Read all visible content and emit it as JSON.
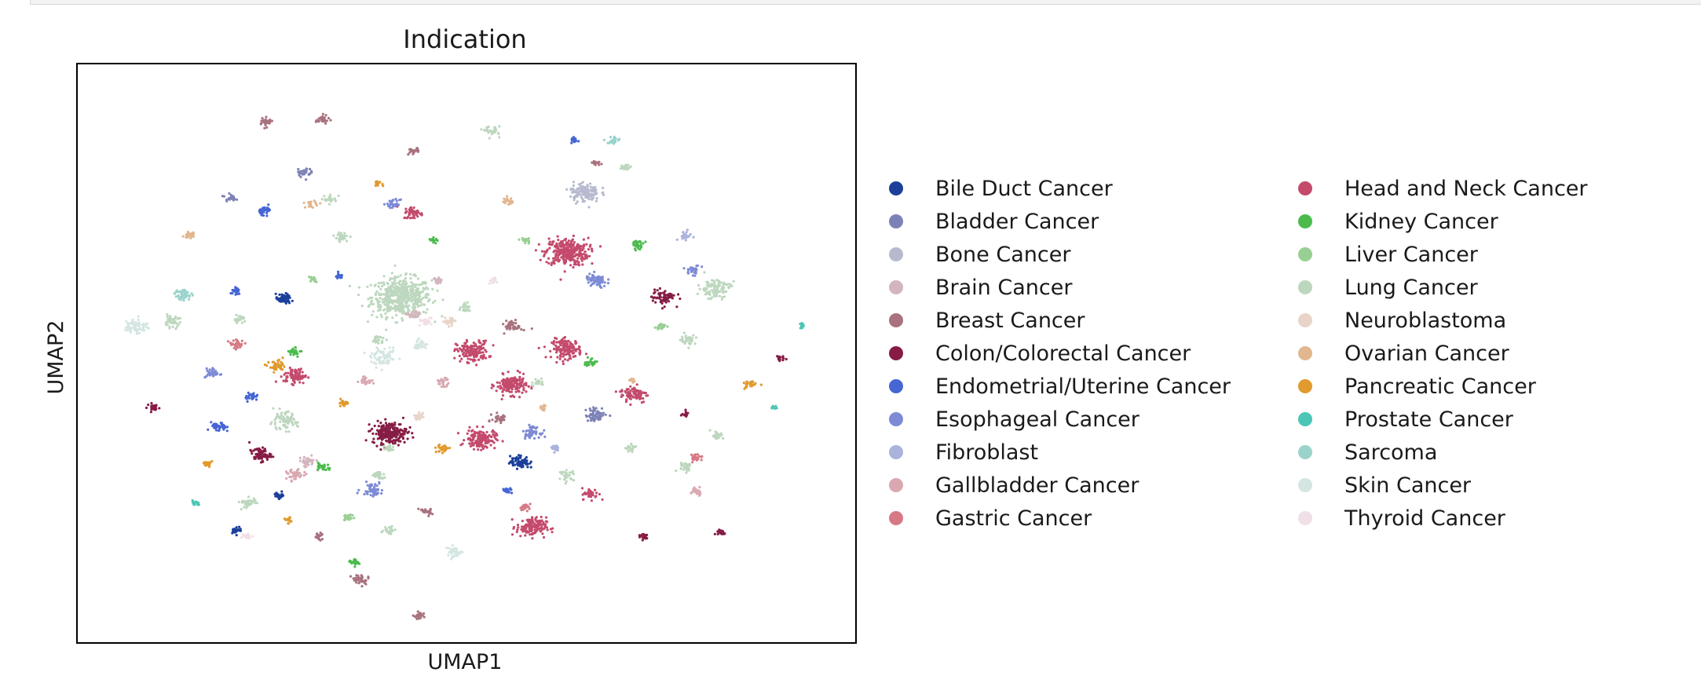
{
  "chart_data": {
    "type": "scatter",
    "title": "Indication",
    "xlabel": "UMAP1",
    "ylabel": "UMAP2",
    "grid": false,
    "ticks": false,
    "legend_placement": "right, two columns",
    "series": [
      {
        "name": "Bile Duct Cancer",
        "color": "#1b3f9b"
      },
      {
        "name": "Bladder Cancer",
        "color": "#7d82b6"
      },
      {
        "name": "Bone Cancer",
        "color": "#b7bacf"
      },
      {
        "name": "Brain Cancer",
        "color": "#d3b6bd"
      },
      {
        "name": "Breast Cancer",
        "color": "#a8727e"
      },
      {
        "name": "Colon/Colorectal Cancer",
        "color": "#861c45"
      },
      {
        "name": "Endometrial/Uterine Cancer",
        "color": "#4566d3"
      },
      {
        "name": "Esophageal Cancer",
        "color": "#7d8bd6"
      },
      {
        "name": "Fibroblast",
        "color": "#aab3db"
      },
      {
        "name": "Gallbladder Cancer",
        "color": "#d9a8b1"
      },
      {
        "name": "Gastric Cancer",
        "color": "#d67985"
      },
      {
        "name": "Head and Neck Cancer",
        "color": "#c44a6c"
      },
      {
        "name": "Kidney Cancer",
        "color": "#4cbb4c"
      },
      {
        "name": "Liver Cancer",
        "color": "#98cf92"
      },
      {
        "name": "Lung Cancer",
        "color": "#bdd7be"
      },
      {
        "name": "Neuroblastoma",
        "color": "#e8d4c9"
      },
      {
        "name": "Ovarian Cancer",
        "color": "#e2b68f"
      },
      {
        "name": "Pancreatic Cancer",
        "color": "#e09a2d"
      },
      {
        "name": "Prostate Cancer",
        "color": "#4cc6b5"
      },
      {
        "name": "Sarcoma",
        "color": "#9ad3cc"
      },
      {
        "name": "Skin Cancer",
        "color": "#d4e5e2"
      },
      {
        "name": "Thyroid Cancer",
        "color": "#f0dfe6"
      }
    ],
    "clusters": [
      {
        "s": 14,
        "x": -0.05,
        "y": 0.62,
        "r": 0.28,
        "n": 520
      },
      {
        "s": 11,
        "x": 1.35,
        "y": 1.12,
        "r": 0.2,
        "n": 300
      },
      {
        "s": 11,
        "x": 0.55,
        "y": 0.02,
        "r": 0.15,
        "n": 160
      },
      {
        "s": 11,
        "x": 1.35,
        "y": 0.05,
        "r": 0.14,
        "n": 150
      },
      {
        "s": 11,
        "x": 0.88,
        "y": -0.35,
        "r": 0.14,
        "n": 170
      },
      {
        "s": 11,
        "x": 0.62,
        "y": -0.95,
        "r": 0.14,
        "n": 150
      },
      {
        "s": 11,
        "x": 1.05,
        "y": -1.92,
        "r": 0.14,
        "n": 140
      },
      {
        "s": 11,
        "x": -0.95,
        "y": -0.25,
        "r": 0.11,
        "n": 80
      },
      {
        "s": 11,
        "x": 1.92,
        "y": -0.45,
        "r": 0.13,
        "n": 80
      },
      {
        "s": 11,
        "x": 1.55,
        "y": -1.55,
        "r": 0.08,
        "n": 40
      },
      {
        "s": 11,
        "x": 0.05,
        "y": 1.55,
        "r": 0.09,
        "n": 50
      },
      {
        "s": 5,
        "x": -0.15,
        "y": -0.88,
        "r": 0.16,
        "n": 210
      },
      {
        "s": 5,
        "x": -1.25,
        "y": -1.12,
        "r": 0.1,
        "n": 70
      },
      {
        "s": 5,
        "x": 2.17,
        "y": 0.62,
        "r": 0.11,
        "n": 70
      },
      {
        "s": 5,
        "x": 3.15,
        "y": -0.05,
        "r": 0.04,
        "n": 15
      },
      {
        "s": 5,
        "x": 2.65,
        "y": -1.98,
        "r": 0.05,
        "n": 20
      },
      {
        "s": 5,
        "x": 2.0,
        "y": -2.02,
        "r": 0.05,
        "n": 20
      },
      {
        "s": 5,
        "x": -2.15,
        "y": -0.6,
        "r": 0.06,
        "n": 25
      },
      {
        "s": 5,
        "x": 2.35,
        "y": -0.68,
        "r": 0.04,
        "n": 12
      },
      {
        "s": 0,
        "x": -1.05,
        "y": 0.6,
        "r": 0.07,
        "n": 60
      },
      {
        "s": 0,
        "x": 0.95,
        "y": -1.2,
        "r": 0.09,
        "n": 70
      },
      {
        "s": 0,
        "x": -1.08,
        "y": -1.57,
        "r": 0.05,
        "n": 25
      },
      {
        "s": 0,
        "x": -1.45,
        "y": -1.95,
        "r": 0.05,
        "n": 20
      },
      {
        "s": 1,
        "x": 1.6,
        "y": -0.68,
        "r": 0.1,
        "n": 60
      },
      {
        "s": 1,
        "x": -0.88,
        "y": 2.0,
        "r": 0.07,
        "n": 30
      },
      {
        "s": 1,
        "x": -1.5,
        "y": 1.72,
        "r": 0.05,
        "n": 25
      },
      {
        "s": 2,
        "x": 1.5,
        "y": 1.78,
        "r": 0.14,
        "n": 130
      },
      {
        "s": 6,
        "x": -1.6,
        "y": -0.82,
        "r": 0.07,
        "n": 40
      },
      {
        "s": 6,
        "x": -1.32,
        "y": -0.48,
        "r": 0.06,
        "n": 30
      },
      {
        "s": 6,
        "x": -1.2,
        "y": 1.58,
        "r": 0.06,
        "n": 30
      },
      {
        "s": 6,
        "x": -1.45,
        "y": 0.68,
        "r": 0.05,
        "n": 25
      },
      {
        "s": 6,
        "x": 1.42,
        "y": 2.35,
        "r": 0.04,
        "n": 15
      },
      {
        "s": 6,
        "x": 0.85,
        "y": -1.52,
        "r": 0.05,
        "n": 20
      },
      {
        "s": 6,
        "x": -0.58,
        "y": 0.85,
        "r": 0.04,
        "n": 15
      },
      {
        "s": 7,
        "x": 1.6,
        "y": 0.8,
        "r": 0.1,
        "n": 70
      },
      {
        "s": 7,
        "x": -0.3,
        "y": -1.5,
        "r": 0.1,
        "n": 55
      },
      {
        "s": 7,
        "x": 1.05,
        "y": -0.87,
        "r": 0.08,
        "n": 50
      },
      {
        "s": 7,
        "x": -0.12,
        "y": 1.65,
        "r": 0.06,
        "n": 30
      },
      {
        "s": 7,
        "x": -1.65,
        "y": -0.22,
        "r": 0.07,
        "n": 35
      },
      {
        "s": 7,
        "x": 2.42,
        "y": 0.92,
        "r": 0.07,
        "n": 30
      },
      {
        "s": 8,
        "x": 2.35,
        "y": 1.3,
        "r": 0.06,
        "n": 25
      },
      {
        "s": 8,
        "x": 1.25,
        "y": -1.05,
        "r": 0.05,
        "n": 20
      },
      {
        "s": 3,
        "x": 0.05,
        "y": 0.42,
        "r": 0.06,
        "n": 30
      },
      {
        "s": 3,
        "x": -0.85,
        "y": -1.2,
        "r": 0.08,
        "n": 40
      },
      {
        "s": 3,
        "x": 0.25,
        "y": 0.8,
        "r": 0.05,
        "n": 20
      },
      {
        "s": 4,
        "x": 0.9,
        "y": 0.3,
        "r": 0.08,
        "n": 45
      },
      {
        "s": 4,
        "x": 0.78,
        "y": -0.72,
        "r": 0.07,
        "n": 35
      },
      {
        "s": 4,
        "x": -1.2,
        "y": 2.55,
        "r": 0.06,
        "n": 30
      },
      {
        "s": 4,
        "x": -0.72,
        "y": 2.58,
        "r": 0.06,
        "n": 30
      },
      {
        "s": 4,
        "x": -0.4,
        "y": -2.5,
        "r": 0.08,
        "n": 35
      },
      {
        "s": 4,
        "x": 0.15,
        "y": -1.75,
        "r": 0.06,
        "n": 25
      },
      {
        "s": 4,
        "x": 0.05,
        "y": 2.23,
        "r": 0.05,
        "n": 20
      },
      {
        "s": 4,
        "x": -0.75,
        "y": -2.02,
        "r": 0.05,
        "n": 20
      },
      {
        "s": 4,
        "x": 0.1,
        "y": -2.9,
        "r": 0.05,
        "n": 25
      },
      {
        "s": 4,
        "x": 1.6,
        "y": 2.1,
        "r": 0.04,
        "n": 15
      },
      {
        "s": 9,
        "x": -0.95,
        "y": -1.35,
        "r": 0.08,
        "n": 40
      },
      {
        "s": 9,
        "x": 0.3,
        "y": -0.32,
        "r": 0.06,
        "n": 25
      },
      {
        "s": 9,
        "x": 2.45,
        "y": -1.52,
        "r": 0.06,
        "n": 25
      },
      {
        "s": 9,
        "x": -0.35,
        "y": -0.3,
        "r": 0.06,
        "n": 25
      },
      {
        "s": 10,
        "x": -1.45,
        "y": 0.1,
        "r": 0.07,
        "n": 35
      },
      {
        "s": 10,
        "x": 2.45,
        "y": -1.15,
        "r": 0.06,
        "n": 25
      },
      {
        "s": 10,
        "x": 1.0,
        "y": -1.7,
        "r": 0.05,
        "n": 20
      },
      {
        "s": 12,
        "x": 1.95,
        "y": 1.2,
        "r": 0.06,
        "n": 30
      },
      {
        "s": 12,
        "x": -0.95,
        "y": 0.02,
        "r": 0.06,
        "n": 25
      },
      {
        "s": 12,
        "x": -0.72,
        "y": -1.25,
        "r": 0.06,
        "n": 25
      },
      {
        "s": 12,
        "x": 1.55,
        "y": -0.1,
        "r": 0.06,
        "n": 25
      },
      {
        "s": 12,
        "x": -0.45,
        "y": -2.3,
        "r": 0.05,
        "n": 25
      },
      {
        "s": 12,
        "x": 0.22,
        "y": 1.25,
        "r": 0.04,
        "n": 15
      },
      {
        "s": 13,
        "x": -0.5,
        "y": -1.82,
        "r": 0.05,
        "n": 20
      },
      {
        "s": 13,
        "x": 1.0,
        "y": 1.25,
        "r": 0.05,
        "n": 20
      },
      {
        "s": 13,
        "x": 2.15,
        "y": 0.3,
        "r": 0.05,
        "n": 20
      },
      {
        "s": 13,
        "x": -0.8,
        "y": 0.82,
        "r": 0.04,
        "n": 15
      },
      {
        "s": 14,
        "x": 2.6,
        "y": 0.72,
        "r": 0.15,
        "n": 100
      },
      {
        "s": 14,
        "x": -1.05,
        "y": -0.75,
        "r": 0.13,
        "n": 80
      },
      {
        "s": 14,
        "x": -2.0,
        "y": 0.35,
        "r": 0.08,
        "n": 40
      },
      {
        "s": 14,
        "x": -1.35,
        "y": -1.65,
        "r": 0.08,
        "n": 40
      },
      {
        "s": 14,
        "x": 1.35,
        "y": -1.35,
        "r": 0.07,
        "n": 30
      },
      {
        "s": 14,
        "x": -0.55,
        "y": 1.28,
        "r": 0.07,
        "n": 30
      },
      {
        "s": 14,
        "x": 2.35,
        "y": -1.25,
        "r": 0.07,
        "n": 30
      },
      {
        "s": 14,
        "x": -0.15,
        "y": -1.05,
        "r": 0.06,
        "n": 25
      },
      {
        "s": 14,
        "x": -0.15,
        "y": -1.95,
        "r": 0.06,
        "n": 25
      },
      {
        "s": 14,
        "x": 2.62,
        "y": -0.9,
        "r": 0.06,
        "n": 25
      },
      {
        "s": 14,
        "x": 2.38,
        "y": 0.15,
        "r": 0.07,
        "n": 30
      },
      {
        "s": 14,
        "x": 1.1,
        "y": -0.32,
        "r": 0.06,
        "n": 25
      },
      {
        "s": 14,
        "x": 0.5,
        "y": 0.5,
        "r": 0.06,
        "n": 25
      },
      {
        "s": 14,
        "x": -0.65,
        "y": 1.7,
        "r": 0.06,
        "n": 25
      },
      {
        "s": 14,
        "x": -0.25,
        "y": -1.35,
        "r": 0.06,
        "n": 25
      },
      {
        "s": 14,
        "x": 1.85,
        "y": 2.05,
        "r": 0.06,
        "n": 25
      },
      {
        "s": 14,
        "x": 1.9,
        "y": -1.05,
        "r": 0.05,
        "n": 20
      },
      {
        "s": 14,
        "x": 0.72,
        "y": 2.45,
        "r": 0.07,
        "n": 30
      },
      {
        "s": 14,
        "x": -0.25,
        "y": 0.15,
        "r": 0.06,
        "n": 25
      },
      {
        "s": 14,
        "x": -1.42,
        "y": 0.38,
        "r": 0.06,
        "n": 25
      },
      {
        "s": 15,
        "x": 0.35,
        "y": 0.35,
        "r": 0.06,
        "n": 25
      },
      {
        "s": 15,
        "x": 0.1,
        "y": -0.7,
        "r": 0.05,
        "n": 20
      },
      {
        "s": 16,
        "x": -1.85,
        "y": 1.3,
        "r": 0.05,
        "n": 25
      },
      {
        "s": 16,
        "x": -0.82,
        "y": 1.65,
        "r": 0.05,
        "n": 20
      },
      {
        "s": 16,
        "x": 0.85,
        "y": 1.68,
        "r": 0.05,
        "n": 20
      },
      {
        "s": 16,
        "x": 1.9,
        "y": -0.3,
        "r": 0.04,
        "n": 15
      },
      {
        "s": 16,
        "x": 1.15,
        "y": -0.6,
        "r": 0.04,
        "n": 15
      },
      {
        "s": 17,
        "x": -1.1,
        "y": -0.15,
        "r": 0.08,
        "n": 45
      },
      {
        "s": 17,
        "x": 0.3,
        "y": -1.05,
        "r": 0.06,
        "n": 30
      },
      {
        "s": 17,
        "x": -1.7,
        "y": -1.22,
        "r": 0.05,
        "n": 25
      },
      {
        "s": 17,
        "x": 2.9,
        "y": -0.35,
        "r": 0.06,
        "n": 25
      },
      {
        "s": 17,
        "x": -0.55,
        "y": -0.55,
        "r": 0.05,
        "n": 20
      },
      {
        "s": 17,
        "x": -0.25,
        "y": 1.88,
        "r": 0.04,
        "n": 15
      },
      {
        "s": 17,
        "x": -1.0,
        "y": -1.85,
        "r": 0.04,
        "n": 15
      },
      {
        "s": 18,
        "x": -1.8,
        "y": -1.65,
        "r": 0.04,
        "n": 15
      },
      {
        "s": 18,
        "x": 3.35,
        "y": 0.3,
        "r": 0.04,
        "n": 15
      },
      {
        "s": 18,
        "x": 3.1,
        "y": -0.6,
        "r": 0.03,
        "n": 12
      },
      {
        "s": 19,
        "x": -1.9,
        "y": 0.65,
        "r": 0.08,
        "n": 40
      },
      {
        "s": 19,
        "x": 1.75,
        "y": 2.35,
        "r": 0.06,
        "n": 25
      },
      {
        "s": 20,
        "x": -2.3,
        "y": 0.3,
        "r": 0.11,
        "n": 70
      },
      {
        "s": 20,
        "x": -0.2,
        "y": -0.05,
        "r": 0.12,
        "n": 70
      },
      {
        "s": 20,
        "x": 0.4,
        "y": -2.2,
        "r": 0.08,
        "n": 40
      },
      {
        "s": 20,
        "x": 0.1,
        "y": 0.1,
        "r": 0.07,
        "n": 30
      },
      {
        "s": 21,
        "x": -1.35,
        "y": -2.02,
        "r": 0.04,
        "n": 15
      },
      {
        "s": 21,
        "x": 0.15,
        "y": 0.35,
        "r": 0.06,
        "n": 25
      },
      {
        "s": 21,
        "x": 0.72,
        "y": 0.8,
        "r": 0.04,
        "n": 15
      }
    ]
  }
}
